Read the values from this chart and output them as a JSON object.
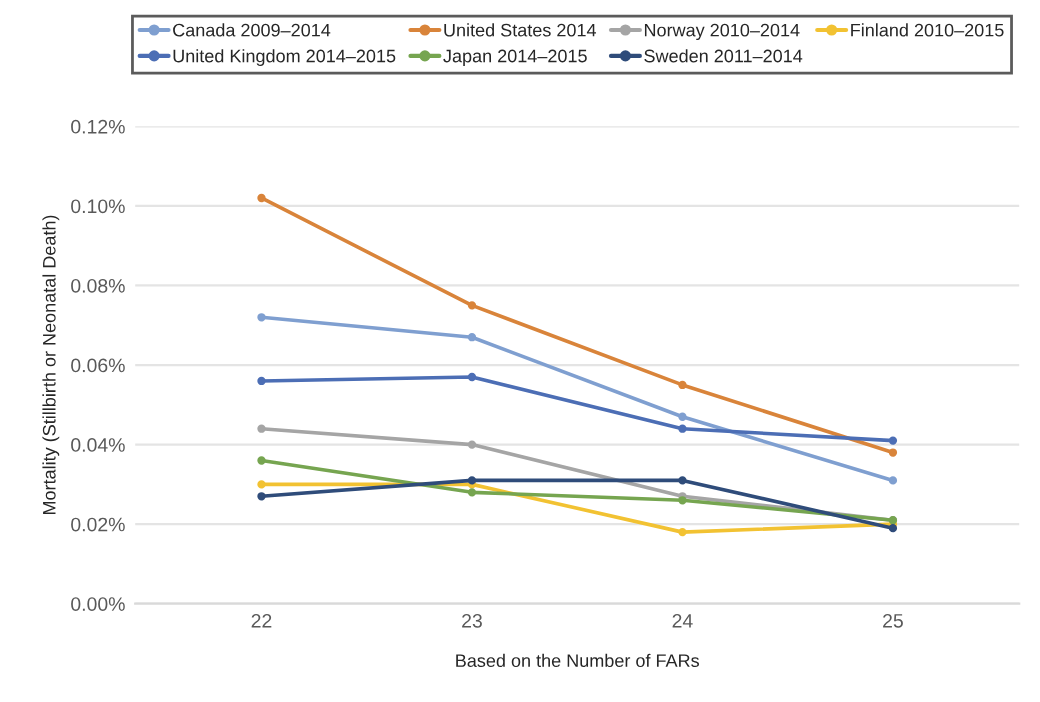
{
  "chart_data": {
    "type": "line",
    "xlabel": "Based on the Number of FARs",
    "ylabel": "Mortality (Stillbirth or Neonatal Death)",
    "categories": [
      "22",
      "23",
      "24",
      "25"
    ],
    "series": [
      {
        "name": "Canada 2009–2014",
        "color": "#7f9fd0",
        "values": [
          0.072,
          0.067,
          0.047,
          0.031
        ]
      },
      {
        "name": "United States 2014",
        "color": "#d9843a",
        "values": [
          0.102,
          0.075,
          0.055,
          0.038
        ]
      },
      {
        "name": "Norway 2010–2014",
        "color": "#a5a5a5",
        "values": [
          0.044,
          0.04,
          0.027,
          0.021
        ]
      },
      {
        "name": "Finland 2010–2015",
        "color": "#f2c232",
        "values": [
          0.03,
          0.03,
          0.018,
          0.02
        ]
      },
      {
        "name": "United Kingdom 2014–2015",
        "color": "#4c6eb5",
        "values": [
          0.056,
          0.057,
          0.044,
          0.041
        ]
      },
      {
        "name": "Japan 2014–2015",
        "color": "#76a550",
        "values": [
          0.036,
          0.028,
          0.026,
          0.021
        ]
      },
      {
        "name": "Sweden 2011–2014",
        "color": "#2f4c7a",
        "values": [
          0.027,
          0.031,
          0.031,
          0.019
        ]
      }
    ],
    "ylim": [
      0,
      0.12
    ],
    "yticks": [
      {
        "value": 0,
        "label": "0.00%"
      },
      {
        "value": 0.02,
        "label": "0.02%"
      },
      {
        "value": 0.04,
        "label": "0.04%"
      },
      {
        "value": 0.06,
        "label": "0.06%"
      },
      {
        "value": 0.08,
        "label": "0.08%"
      },
      {
        "value": 0.1,
        "label": "0.10%"
      },
      {
        "value": 0.12,
        "label": "0.12%"
      }
    ],
    "grid": "y",
    "legend": "top",
    "marker": "circle",
    "line_style": "solid"
  }
}
